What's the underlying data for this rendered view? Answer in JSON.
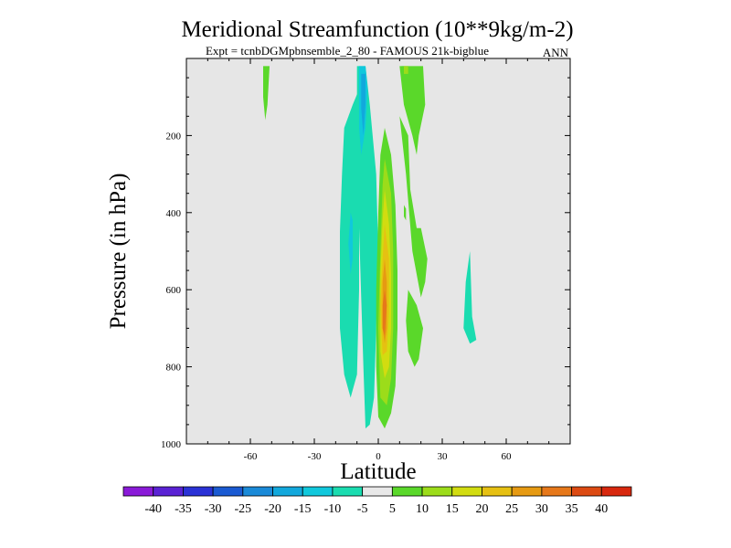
{
  "chart_data": {
    "type": "heatmap",
    "title": "Meridional Streamfunction (10**9kg/m-2)",
    "subtitle": "Expt = tcnbDGMpbnsemble_2_80 - FAMOUS 21k-bigblue",
    "season": "ANN",
    "xlabel": "Latitude",
    "ylabel": "Pressure (in hPa)",
    "xlim": [
      -90,
      90
    ],
    "ylim": [
      0,
      1000
    ],
    "y_inverted": true,
    "xticks": [
      -60,
      -30,
      0,
      30,
      60
    ],
    "yticks": [
      200,
      400,
      600,
      800,
      1000
    ],
    "background_color": "#e6e6e6",
    "colorbar": {
      "tick_labels": [
        "-40",
        "-35",
        "-30",
        "-25",
        "-20",
        "-15",
        "-10",
        "-5",
        "5",
        "10",
        "15",
        "20",
        "25",
        "30",
        "35",
        "40"
      ],
      "colors": [
        "#8a1ad8",
        "#5a22d4",
        "#2a32d6",
        "#1a5ad2",
        "#1a8ad8",
        "#12a8dc",
        "#10c8dc",
        "#1adcb0",
        "#e8e8e8",
        "#5ad82a",
        "#9cdc1a",
        "#d2dc10",
        "#e6c012",
        "#e69a12",
        "#e6781a",
        "#dc4a12",
        "#d8280e"
      ]
    },
    "contours": [
      {
        "level": "-10 to -5",
        "color": "#1adcb0",
        "points": [
          [
            -10,
            20
          ],
          [
            -6,
            20
          ],
          [
            -4,
            120
          ],
          [
            -1,
            300
          ],
          [
            0,
            500
          ],
          [
            -1,
            700
          ],
          [
            -2,
            880
          ],
          [
            -4,
            950
          ],
          [
            -6,
            960
          ],
          [
            -7,
            800
          ],
          [
            -8,
            620
          ],
          [
            -9,
            440
          ],
          [
            -10,
            240
          ]
        ]
      },
      {
        "level": "-10 to -5",
        "color": "#1adcb0",
        "points": [
          [
            -9,
            80
          ],
          [
            -12,
            120
          ],
          [
            -16,
            180
          ],
          [
            -17,
            300
          ],
          [
            -18,
            450
          ],
          [
            -18,
            700
          ],
          [
            -16,
            820
          ],
          [
            -13,
            880
          ],
          [
            -10,
            820
          ],
          [
            -9,
            600
          ],
          [
            -9,
            300
          ]
        ]
      },
      {
        "level": "-15 to -10",
        "color": "#10c8dc",
        "points": [
          [
            -9,
            20
          ],
          [
            -6,
            20
          ],
          [
            -5,
            80
          ],
          [
            -6,
            180
          ],
          [
            -8,
            250
          ],
          [
            -9,
            180
          ]
        ]
      },
      {
        "level": "-15 to -10",
        "color": "#10c8dc",
        "points": [
          [
            -13,
            400
          ],
          [
            -12,
            420
          ],
          [
            -12,
            520
          ],
          [
            -13,
            560
          ],
          [
            -14,
            480
          ]
        ]
      },
      {
        "level": "-20 to -15",
        "color": "#12a8dc",
        "points": [
          [
            -8,
            40
          ],
          [
            -6,
            40
          ],
          [
            -6,
            120
          ],
          [
            -7,
            200
          ],
          [
            -8,
            130
          ]
        ]
      },
      {
        "level": "-10 to -5",
        "color": "#1adcb0",
        "points": [
          [
            41,
            580
          ],
          [
            43,
            500
          ],
          [
            44,
            670
          ],
          [
            46,
            730
          ],
          [
            43,
            740
          ],
          [
            40,
            700
          ]
        ]
      },
      {
        "level": "5 to 10",
        "color": "#5ad82a",
        "points": [
          [
            3,
            180
          ],
          [
            6,
            250
          ],
          [
            8,
            380
          ],
          [
            9,
            550
          ],
          [
            9,
            700
          ],
          [
            8,
            850
          ],
          [
            6,
            920
          ],
          [
            3,
            960
          ],
          [
            0,
            930
          ],
          [
            -1,
            800
          ],
          [
            -1,
            600
          ],
          [
            0,
            400
          ],
          [
            1,
            250
          ]
        ]
      },
      {
        "level": "5 to 10",
        "color": "#5ad82a",
        "points": [
          [
            10,
            150
          ],
          [
            13,
            300
          ],
          [
            16,
            500
          ],
          [
            20,
            620
          ],
          [
            22,
            580
          ],
          [
            23,
            520
          ],
          [
            20,
            440
          ],
          [
            18,
            440
          ],
          [
            15,
            340
          ],
          [
            14,
            200
          ]
        ]
      },
      {
        "level": "5 to 10",
        "color": "#5ad82a",
        "points": [
          [
            14,
            600
          ],
          [
            18,
            640
          ],
          [
            21,
            700
          ],
          [
            19,
            780
          ],
          [
            17,
            800
          ],
          [
            14,
            760
          ],
          [
            13,
            680
          ]
        ]
      },
      {
        "level": "5 to 10",
        "color": "#5ad82a",
        "points": [
          [
            10,
            20
          ],
          [
            21,
            20
          ],
          [
            22,
            120
          ],
          [
            19,
            200
          ],
          [
            18,
            250
          ],
          [
            16,
            200
          ],
          [
            12,
            120
          ]
        ]
      },
      {
        "level": "5 to 10",
        "color": "#5ad82a",
        "points": [
          [
            -54,
            20
          ],
          [
            -51,
            20
          ],
          [
            -52,
            120
          ],
          [
            -53,
            160
          ],
          [
            -54,
            100
          ]
        ]
      },
      {
        "level": "5 to 10",
        "color": "#5ad82a",
        "points": [
          [
            12,
            380
          ],
          [
            13,
            390
          ],
          [
            13,
            420
          ],
          [
            12,
            410
          ]
        ]
      },
      {
        "level": "10 to 15",
        "color": "#9cdc1a",
        "points": [
          [
            3,
            260
          ],
          [
            6,
            350
          ],
          [
            7,
            500
          ],
          [
            7,
            700
          ],
          [
            6,
            830
          ],
          [
            4,
            900
          ],
          [
            1,
            880
          ],
          [
            0,
            700
          ],
          [
            1,
            500
          ],
          [
            2,
            330
          ]
        ]
      },
      {
        "level": "15 to 20",
        "color": "#d2dc10",
        "points": [
          [
            3,
            340
          ],
          [
            5,
            430
          ],
          [
            6,
            560
          ],
          [
            6,
            700
          ],
          [
            5,
            800
          ],
          [
            3,
            830
          ],
          [
            1,
            760
          ],
          [
            1,
            560
          ],
          [
            2,
            420
          ]
        ]
      },
      {
        "level": "20 to 25",
        "color": "#e6c012",
        "points": [
          [
            3,
            430
          ],
          [
            5,
            520
          ],
          [
            5,
            660
          ],
          [
            4,
            760
          ],
          [
            2,
            770
          ],
          [
            1,
            640
          ],
          [
            2,
            520
          ]
        ]
      },
      {
        "level": "25 to 30",
        "color": "#e69a12",
        "points": [
          [
            3,
            520
          ],
          [
            4,
            580
          ],
          [
            4,
            700
          ],
          [
            3,
            740
          ],
          [
            2,
            700
          ],
          [
            2,
            580
          ]
        ]
      },
      {
        "level": "30 to 35",
        "color": "#e6781a",
        "points": [
          [
            3,
            600
          ],
          [
            4,
            640
          ],
          [
            3,
            720
          ],
          [
            2,
            700
          ],
          [
            2,
            640
          ]
        ]
      },
      {
        "level": "5 to 10",
        "color": "#5ad82a",
        "points": [
          [
            11,
            20
          ],
          [
            14,
            20
          ],
          [
            14,
            60
          ],
          [
            12,
            60
          ]
        ]
      },
      {
        "level": "10 to 15",
        "color": "#9cdc1a",
        "points": [
          [
            12,
            20
          ],
          [
            14,
            20
          ],
          [
            14,
            40
          ],
          [
            12,
            40
          ]
        ]
      }
    ]
  }
}
